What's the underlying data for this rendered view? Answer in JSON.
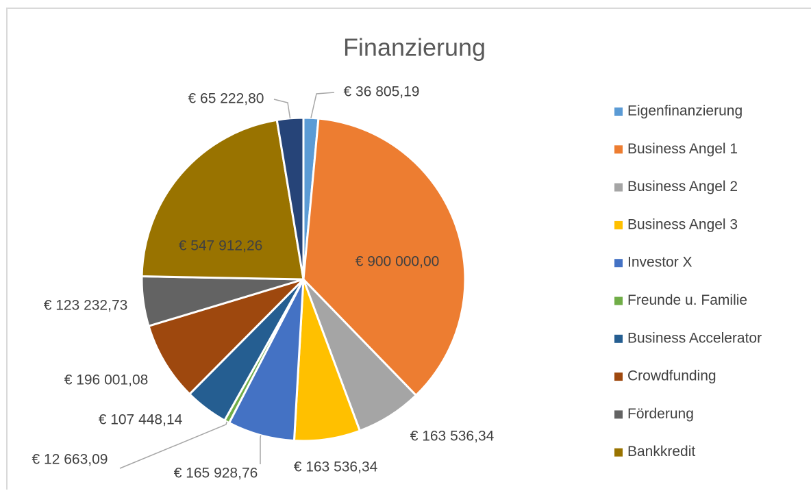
{
  "chart_data": {
    "type": "pie",
    "title": "Finanzierung",
    "categories": [
      "Eigenfinanzierung",
      "Business Angel 1",
      "Business Angel 2",
      "Business Angel 3",
      "Investor X",
      "Freunde u. Familie",
      "Business Accelerator",
      "Crowdfunding",
      "Förderung",
      "Bankkredit",
      null
    ],
    "values": [
      36805.19,
      900000.0,
      163536.34,
      163536.34,
      165928.76,
      12663.09,
      107448.14,
      196001.08,
      123232.73,
      547912.26,
      65222.8
    ],
    "value_labels": [
      "€ 36 805,19",
      "€ 900 000,00",
      "€ 163 536,34",
      "€ 163 536,34",
      "€ 165 928,76",
      "€ 12 663,09",
      "€ 107 448,14",
      "€ 196 001,08",
      "€ 123 232,73",
      "€ 547 912,26",
      "€ 65 222,80"
    ],
    "colors": [
      "#5b9bd5",
      "#ed7d31",
      "#a5a5a5",
      "#ffc000",
      "#4472c4",
      "#70ad47",
      "#255e91",
      "#9e480e",
      "#636363",
      "#997300",
      "#264478"
    ],
    "legend": "right"
  }
}
